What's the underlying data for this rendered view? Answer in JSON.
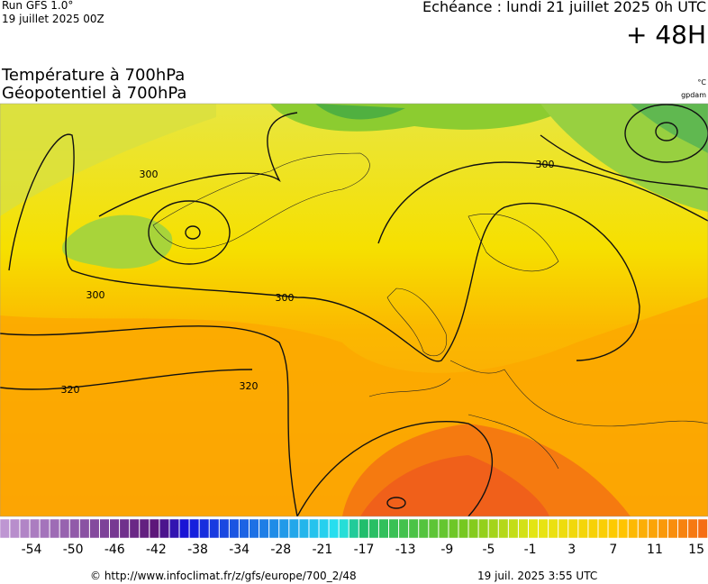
{
  "header": {
    "run": "Run GFS 1.0°",
    "run_date": "19 juillet 2025 00Z",
    "valid": "Echéance : lundi 21 juillet 2025 0h UTC",
    "lead": "+ 48H"
  },
  "title": {
    "line1": "Température à 700hPa",
    "line2": "Géopotentiel à 700hPa",
    "unit1": "°C",
    "unit2": "gpdam"
  },
  "contour_labels": [
    "300",
    "300",
    "300",
    "300",
    "320",
    "320"
  ],
  "colorbar_labels": [
    -54,
    -50,
    -46,
    -42,
    -38,
    -34,
    -28,
    -21,
    -17,
    -13,
    -9,
    -5,
    -1,
    3,
    7,
    11,
    15
  ],
  "footer": {
    "source": "© http://www.infoclimat.fr/z/gfs/europe/700_2/48",
    "generated": "19 juil. 2025  3:55 UTC"
  }
}
